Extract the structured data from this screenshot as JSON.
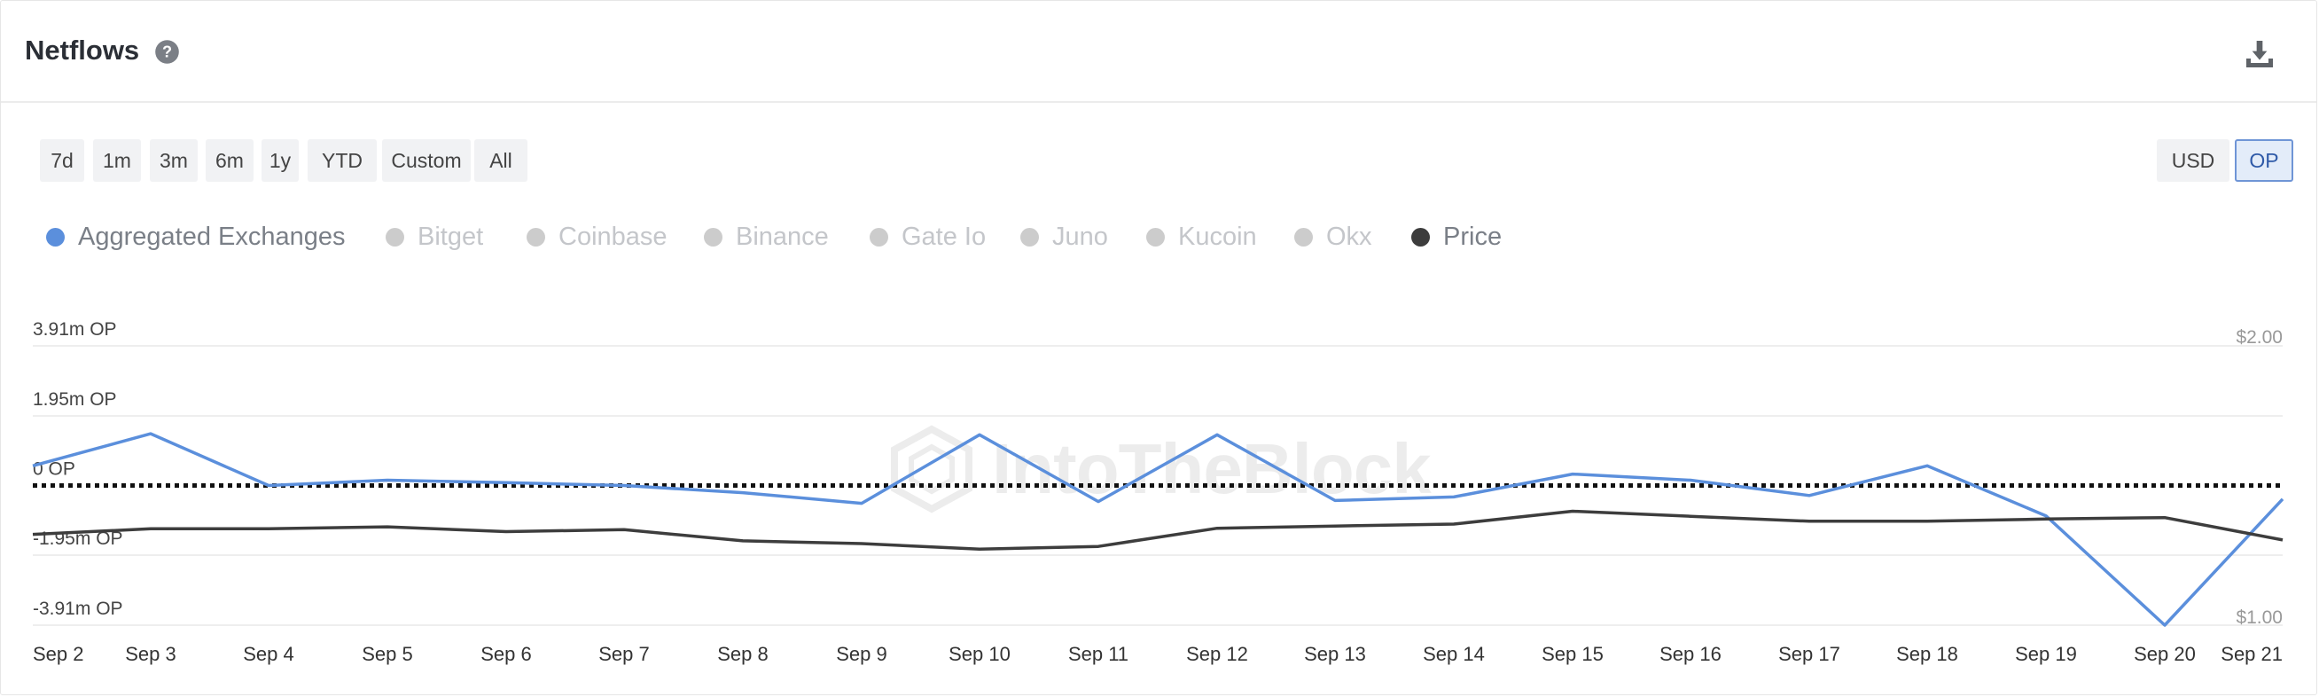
{
  "header": {
    "title": "Netflows",
    "help_icon": "question-circle-icon",
    "download_icon": "download-icon"
  },
  "range_buttons": [
    "7d",
    "1m",
    "3m",
    "6m",
    "1y",
    "YTD",
    "Custom",
    "All"
  ],
  "unit_buttons": {
    "usd": "USD",
    "op": "OP",
    "selected": "OP"
  },
  "legend": [
    {
      "label": "Aggregated Exchanges",
      "color": "#5b8fdc",
      "active": true
    },
    {
      "label": "Bitget",
      "color": "#cccccc",
      "active": false
    },
    {
      "label": "Coinbase",
      "color": "#cccccc",
      "active": false
    },
    {
      "label": "Binance",
      "color": "#cccccc",
      "active": false
    },
    {
      "label": "Gate Io",
      "color": "#cccccc",
      "active": false
    },
    {
      "label": "Juno",
      "color": "#cccccc",
      "active": false
    },
    {
      "label": "Kucoin",
      "color": "#cccccc",
      "active": false
    },
    {
      "label": "Okx",
      "color": "#cccccc",
      "active": false
    },
    {
      "label": "Price",
      "color": "#3d3d3d",
      "active": true
    }
  ],
  "watermark": "IntoTheBlock",
  "chart_data": {
    "type": "line",
    "x": [
      "Sep 2",
      "Sep 3",
      "Sep 4",
      "Sep 5",
      "Sep 6",
      "Sep 7",
      "Sep 8",
      "Sep 9",
      "Sep 10",
      "Sep 11",
      "Sep 12",
      "Sep 13",
      "Sep 14",
      "Sep 15",
      "Sep 16",
      "Sep 17",
      "Sep 18",
      "Sep 19",
      "Sep 20",
      "Sep 21"
    ],
    "y_left": {
      "ticks": [
        3.91,
        1.95,
        0,
        -1.95,
        -3.91
      ],
      "tick_labels": [
        "3.91m OP",
        "1.95m OP",
        "0 OP",
        "-1.95m OP",
        "-3.91m OP"
      ],
      "range": [
        -3.91,
        3.91
      ],
      "unit": "m OP"
    },
    "y_right": {
      "tick_labels": [
        "$2.00",
        "$1.00"
      ],
      "range": [
        1.0,
        2.0
      ]
    },
    "series": [
      {
        "name": "Aggregated Exchanges",
        "axis": "left",
        "color": "#5b8fdc",
        "values": [
          0.55,
          1.45,
          0.0,
          0.15,
          0.08,
          0.0,
          -0.2,
          -0.5,
          1.42,
          -0.45,
          1.42,
          -0.42,
          -0.32,
          0.32,
          0.15,
          -0.28,
          0.55,
          -0.85,
          -3.91,
          -0.38
        ]
      },
      {
        "name": "Price",
        "axis": "right",
        "color": "#3d3d3d",
        "values": [
          1.325,
          1.345,
          1.345,
          1.352,
          1.335,
          1.342,
          1.302,
          1.292,
          1.272,
          1.282,
          1.347,
          1.355,
          1.362,
          1.408,
          1.39,
          1.372,
          1.372,
          1.38,
          1.385,
          1.305
        ]
      }
    ],
    "zero_line": "dotted",
    "grid": true
  }
}
